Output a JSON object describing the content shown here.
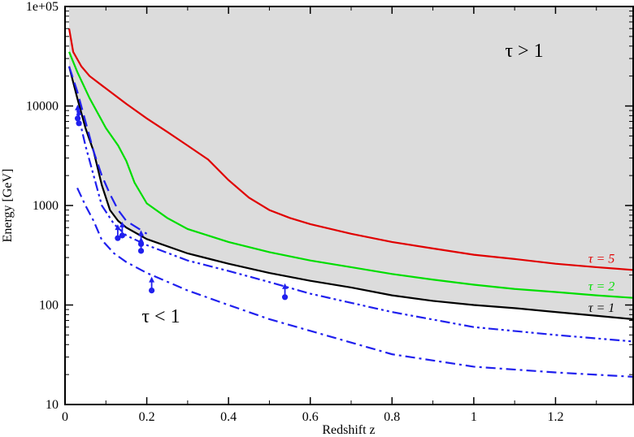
{
  "chart_data": {
    "type": "line",
    "title": "",
    "xlabel": "Redshift z",
    "ylabel": "Energy [GeV]",
    "xlim": [
      0,
      1.39
    ],
    "ylim": [
      10,
      100000
    ],
    "yscale": "log",
    "grid": false,
    "x_ticks": [
      0,
      0.2,
      0.4,
      0.6,
      0.8,
      1,
      1.2
    ],
    "x_tick_labels": [
      "0",
      "0.2",
      "0.4",
      "0.6",
      "0.8",
      "1",
      "1.2"
    ],
    "y_ticks": [
      10,
      100,
      1000,
      10000,
      100000
    ],
    "y_tick_labels": [
      "10",
      "100",
      "1000",
      "10000",
      "1e+05"
    ],
    "shaded_region": {
      "above_series": "tau=1",
      "color": "#dcdcdc"
    },
    "region_labels": {
      "upper": "τ > 1",
      "lower": "τ < 1"
    },
    "series": [
      {
        "name": "τ = 5",
        "color": "#e00000",
        "style": "solid",
        "x": [
          0.01,
          0.02,
          0.04,
          0.06,
          0.1,
          0.15,
          0.2,
          0.25,
          0.3,
          0.35,
          0.4,
          0.45,
          0.5,
          0.55,
          0.6,
          0.7,
          0.8,
          0.9,
          1.0,
          1.1,
          1.2,
          1.3,
          1.39
        ],
        "y": [
          60000,
          35000,
          25000,
          20000,
          15000,
          10500,
          7500,
          5500,
          4000,
          2900,
          1800,
          1200,
          900,
          750,
          650,
          520,
          430,
          370,
          320,
          290,
          260,
          240,
          225
        ]
      },
      {
        "name": "τ = 2",
        "color": "#00dd00",
        "style": "solid",
        "x": [
          0.01,
          0.03,
          0.06,
          0.1,
          0.13,
          0.15,
          0.17,
          0.2,
          0.25,
          0.3,
          0.4,
          0.5,
          0.6,
          0.7,
          0.8,
          0.9,
          1.0,
          1.1,
          1.2,
          1.3,
          1.39
        ],
        "y": [
          35000,
          22000,
          12000,
          6000,
          4000,
          2800,
          1700,
          1050,
          750,
          580,
          430,
          340,
          280,
          240,
          205,
          180,
          160,
          145,
          135,
          125,
          118
        ]
      },
      {
        "name": "τ = 1",
        "color": "#000000",
        "style": "solid",
        "x": [
          0.01,
          0.03,
          0.05,
          0.07,
          0.09,
          0.11,
          0.13,
          0.15,
          0.2,
          0.3,
          0.4,
          0.5,
          0.6,
          0.7,
          0.8,
          0.9,
          1.0,
          1.1,
          1.2,
          1.3,
          1.39
        ],
        "y": [
          25000,
          12000,
          6000,
          3500,
          1600,
          900,
          700,
          600,
          460,
          330,
          260,
          210,
          175,
          150,
          125,
          110,
          100,
          93,
          85,
          78,
          72
        ]
      },
      {
        "name": "",
        "color": "#2020ee",
        "style": "dashed",
        "x": [
          0.01,
          0.03,
          0.05,
          0.07,
          0.09,
          0.11,
          0.13,
          0.15,
          0.2
        ],
        "y": [
          25000,
          14000,
          7000,
          3500,
          2000,
          1300,
          900,
          700,
          520
        ]
      },
      {
        "name": "",
        "color": "#2020ee",
        "style": "dashdotdot",
        "x": [
          0.03,
          0.05,
          0.07,
          0.09,
          0.12,
          0.15,
          0.2,
          0.3,
          0.4,
          0.5,
          0.6,
          0.8,
          1.0,
          1.2,
          1.39
        ],
        "y": [
          9000,
          4000,
          2000,
          1000,
          650,
          500,
          400,
          280,
          220,
          170,
          130,
          85,
          60,
          50,
          43
        ]
      },
      {
        "name": "",
        "color": "#2020ee",
        "style": "dashdot",
        "x": [
          0.03,
          0.05,
          0.07,
          0.09,
          0.12,
          0.15,
          0.2,
          0.3,
          0.4,
          0.5,
          0.6,
          0.8,
          1.0,
          1.2,
          1.39
        ],
        "y": [
          1500,
          1000,
          700,
          450,
          330,
          270,
          210,
          140,
          100,
          72,
          55,
          32,
          24,
          21,
          19
        ]
      }
    ],
    "points": [
      {
        "x": 0.031,
        "y": 7500,
        "lower_limit": true
      },
      {
        "x": 0.034,
        "y": 6700,
        "lower_limit": true
      },
      {
        "x": 0.129,
        "y": 470,
        "lower_limit": true
      },
      {
        "x": 0.14,
        "y": 500,
        "lower_limit": true
      },
      {
        "x": 0.186,
        "y": 410,
        "lower_limit": true
      },
      {
        "x": 0.186,
        "y": 350,
        "lower_limit": true
      },
      {
        "x": 0.212,
        "y": 140,
        "lower_limit": true
      },
      {
        "x": 0.538,
        "y": 120,
        "lower_limit": true
      }
    ],
    "point_color": "#2020ee",
    "curve_labels": [
      {
        "series": "τ = 5",
        "text": "τ = 5"
      },
      {
        "series": "τ = 2",
        "text": "τ = 2"
      },
      {
        "series": "τ = 1",
        "text": "τ = 1"
      }
    ]
  }
}
